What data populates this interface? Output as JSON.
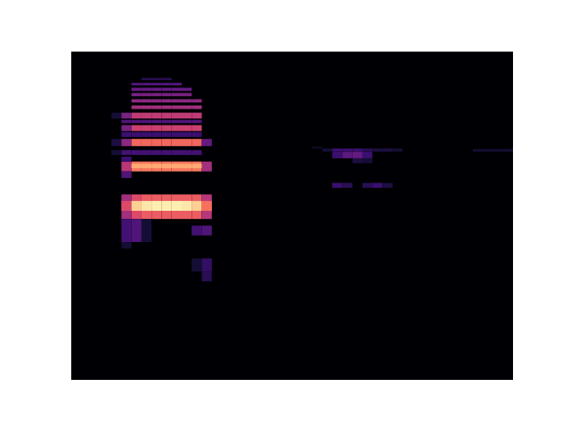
{
  "chart_data": {
    "type": "heatmap",
    "tick_labels": false,
    "xlim": [
      0,
      44
    ],
    "ylim": [
      0,
      100
    ],
    "zlim": [
      0,
      1
    ],
    "cells": [
      [
        5,
        49,
        56.5,
        0.45
      ],
      [
        6,
        49,
        56.5,
        0.6
      ],
      [
        7,
        49,
        56.5,
        0.65
      ],
      [
        8,
        49,
        56.5,
        0.65
      ],
      [
        9,
        49,
        56.5,
        0.65
      ],
      [
        10,
        49,
        56.5,
        0.65
      ],
      [
        11,
        49,
        56.5,
        0.65
      ],
      [
        12,
        49,
        56.5,
        0.65
      ],
      [
        13,
        49,
        56.5,
        0.5
      ],
      [
        5,
        51.5,
        54.5,
        0.6
      ],
      [
        6,
        51.5,
        54.5,
        0.9
      ],
      [
        7,
        51.5,
        54.5,
        0.95
      ],
      [
        8,
        51.5,
        54.5,
        0.97
      ],
      [
        9,
        51.5,
        54.5,
        0.97
      ],
      [
        10,
        51.5,
        54.5,
        0.97
      ],
      [
        11,
        51.5,
        54.5,
        0.95
      ],
      [
        12,
        51.5,
        54.5,
        0.9
      ],
      [
        13,
        51.5,
        54.5,
        0.7
      ],
      [
        5,
        42,
        49,
        0.22
      ],
      [
        6,
        42,
        49,
        0.25
      ],
      [
        7,
        42,
        49,
        0.1
      ],
      [
        12,
        44,
        47,
        0.22
      ],
      [
        13,
        44,
        47,
        0.25
      ],
      [
        5,
        40,
        42,
        0.1
      ],
      [
        13,
        30,
        33,
        0.15
      ],
      [
        12,
        33,
        37,
        0.1
      ],
      [
        13,
        33,
        37,
        0.18
      ],
      [
        5,
        63.5,
        66.5,
        0.5
      ],
      [
        6,
        63.5,
        66.5,
        0.72
      ],
      [
        7,
        63.5,
        66.5,
        0.72
      ],
      [
        8,
        63.5,
        66.5,
        0.72
      ],
      [
        9,
        63.5,
        66.5,
        0.72
      ],
      [
        10,
        63.5,
        66.5,
        0.72
      ],
      [
        11,
        63.5,
        66.5,
        0.72
      ],
      [
        12,
        63.5,
        66.5,
        0.72
      ],
      [
        13,
        63.5,
        66.5,
        0.45
      ],
      [
        6,
        64.5,
        65.8,
        0.82
      ],
      [
        7,
        64.5,
        65.8,
        0.82
      ],
      [
        8,
        64.5,
        65.8,
        0.82
      ],
      [
        9,
        64.5,
        65.8,
        0.82
      ],
      [
        10,
        64.5,
        65.8,
        0.82
      ],
      [
        11,
        64.5,
        65.8,
        0.82
      ],
      [
        12,
        64.5,
        65.8,
        0.82
      ],
      [
        5,
        66.5,
        68,
        0.2
      ],
      [
        5,
        61.5,
        63.5,
        0.25
      ],
      [
        4,
        68.5,
        70,
        0.1
      ],
      [
        5,
        68.5,
        70,
        0.22
      ],
      [
        6,
        68.5,
        70,
        0.22
      ],
      [
        7,
        68.5,
        70,
        0.22
      ],
      [
        8,
        68.5,
        70,
        0.22
      ],
      [
        9,
        68.5,
        70,
        0.22
      ],
      [
        10,
        68.5,
        70,
        0.22
      ],
      [
        11,
        68.5,
        70,
        0.22
      ],
      [
        12,
        68.5,
        70,
        0.22
      ],
      [
        4,
        71.2,
        73.4,
        0.12
      ],
      [
        5,
        71.2,
        73.4,
        0.4
      ],
      [
        6,
        71.2,
        73.4,
        0.68
      ],
      [
        7,
        71.2,
        73.4,
        0.68
      ],
      [
        8,
        71.2,
        73.4,
        0.68
      ],
      [
        9,
        71.2,
        73.4,
        0.68
      ],
      [
        10,
        71.2,
        73.4,
        0.68
      ],
      [
        11,
        71.2,
        73.4,
        0.68
      ],
      [
        12,
        71.2,
        73.4,
        0.68
      ],
      [
        13,
        71.2,
        73.4,
        0.3
      ],
      [
        5,
        74,
        75.5,
        0.2
      ],
      [
        6,
        74,
        75.5,
        0.2
      ],
      [
        7,
        74,
        75.5,
        0.2
      ],
      [
        8,
        74,
        75.5,
        0.2
      ],
      [
        9,
        74,
        75.5,
        0.2
      ],
      [
        10,
        74,
        75.5,
        0.2
      ],
      [
        11,
        74,
        75.5,
        0.2
      ],
      [
        12,
        74,
        75.5,
        0.2
      ],
      [
        5,
        75.8,
        77.6,
        0.35
      ],
      [
        6,
        75.8,
        77.6,
        0.55
      ],
      [
        7,
        75.8,
        77.6,
        0.55
      ],
      [
        8,
        75.8,
        77.6,
        0.55
      ],
      [
        9,
        75.8,
        77.6,
        0.55
      ],
      [
        10,
        75.8,
        77.6,
        0.55
      ],
      [
        11,
        75.8,
        77.6,
        0.55
      ],
      [
        12,
        75.8,
        77.6,
        0.55
      ],
      [
        5,
        78.2,
        79.2,
        0.25
      ],
      [
        6,
        78.2,
        79.2,
        0.25
      ],
      [
        7,
        78.2,
        79.2,
        0.25
      ],
      [
        8,
        78.2,
        79.2,
        0.25
      ],
      [
        9,
        78.2,
        79.2,
        0.25
      ],
      [
        10,
        78.2,
        79.2,
        0.25
      ],
      [
        11,
        78.2,
        79.2,
        0.25
      ],
      [
        12,
        78.2,
        79.2,
        0.25
      ],
      [
        4,
        79.6,
        81.4,
        0.1
      ],
      [
        5,
        79.6,
        81.4,
        0.35
      ],
      [
        6,
        79.6,
        81.4,
        0.52
      ],
      [
        7,
        79.6,
        81.4,
        0.52
      ],
      [
        8,
        79.6,
        81.4,
        0.52
      ],
      [
        9,
        79.6,
        81.4,
        0.52
      ],
      [
        10,
        79.6,
        81.4,
        0.52
      ],
      [
        11,
        79.6,
        81.4,
        0.52
      ],
      [
        12,
        79.6,
        81.4,
        0.52
      ],
      [
        6,
        82.5,
        83.6,
        0.45
      ],
      [
        7,
        82.5,
        83.6,
        0.45
      ],
      [
        8,
        82.5,
        83.6,
        0.45
      ],
      [
        9,
        82.5,
        83.6,
        0.45
      ],
      [
        10,
        82.5,
        83.6,
        0.45
      ],
      [
        11,
        82.5,
        83.6,
        0.45
      ],
      [
        12,
        82.5,
        83.6,
        0.45
      ],
      [
        6,
        84.5,
        85.5,
        0.4
      ],
      [
        7,
        84.5,
        85.5,
        0.4
      ],
      [
        8,
        84.5,
        85.5,
        0.4
      ],
      [
        9,
        84.5,
        85.5,
        0.4
      ],
      [
        10,
        84.5,
        85.5,
        0.4
      ],
      [
        11,
        84.5,
        85.5,
        0.4
      ],
      [
        12,
        84.5,
        85.5,
        0.4
      ],
      [
        6,
        86.4,
        87.4,
        0.35
      ],
      [
        7,
        86.4,
        87.4,
        0.35
      ],
      [
        8,
        86.4,
        87.4,
        0.35
      ],
      [
        9,
        86.4,
        87.4,
        0.35
      ],
      [
        10,
        86.4,
        87.4,
        0.35
      ],
      [
        11,
        86.4,
        87.4,
        0.35
      ],
      [
        6,
        88,
        89,
        0.3
      ],
      [
        7,
        88,
        89,
        0.3
      ],
      [
        8,
        88,
        89,
        0.3
      ],
      [
        9,
        88,
        89,
        0.3
      ],
      [
        10,
        88,
        89,
        0.3
      ],
      [
        11,
        88,
        89,
        0.3
      ],
      [
        6,
        89.7,
        90.5,
        0.25
      ],
      [
        7,
        89.7,
        90.5,
        0.25
      ],
      [
        8,
        89.7,
        90.5,
        0.25
      ],
      [
        9,
        89.7,
        90.5,
        0.25
      ],
      [
        10,
        89.7,
        90.5,
        0.25
      ],
      [
        7,
        91.3,
        92,
        0.15
      ],
      [
        8,
        91.3,
        92,
        0.15
      ],
      [
        9,
        91.3,
        92,
        0.15
      ],
      [
        25,
        69.5,
        70.5,
        0.1
      ],
      [
        26,
        69.5,
        70.5,
        0.2
      ],
      [
        27,
        69.5,
        70.5,
        0.2
      ],
      [
        28,
        69.5,
        70.5,
        0.2
      ],
      [
        29,
        69.5,
        70.5,
        0.15
      ],
      [
        30,
        69.5,
        70.5,
        0.12
      ],
      [
        31,
        69.5,
        70.5,
        0.12
      ],
      [
        32,
        69.5,
        70.5,
        0.1
      ],
      [
        26,
        67.5,
        69.5,
        0.2
      ],
      [
        27,
        67.5,
        69.5,
        0.28
      ],
      [
        28,
        67.5,
        69.5,
        0.3
      ],
      [
        29,
        67.5,
        69.5,
        0.2
      ],
      [
        28,
        66,
        67.5,
        0.12
      ],
      [
        29,
        66,
        67.5,
        0.1
      ],
      [
        26,
        58.5,
        60,
        0.2
      ],
      [
        27,
        58.5,
        60,
        0.15
      ],
      [
        29,
        58.5,
        60,
        0.15
      ],
      [
        30,
        58.5,
        60,
        0.2
      ],
      [
        31,
        58.5,
        60,
        0.12
      ],
      [
        40,
        69.5,
        70.3,
        0.1
      ],
      [
        41,
        69.5,
        70.3,
        0.1
      ],
      [
        42,
        69.5,
        70.3,
        0.1
      ],
      [
        43,
        69.5,
        70.3,
        0.1
      ],
      [
        24,
        70.5,
        71,
        0.08
      ]
    ]
  }
}
